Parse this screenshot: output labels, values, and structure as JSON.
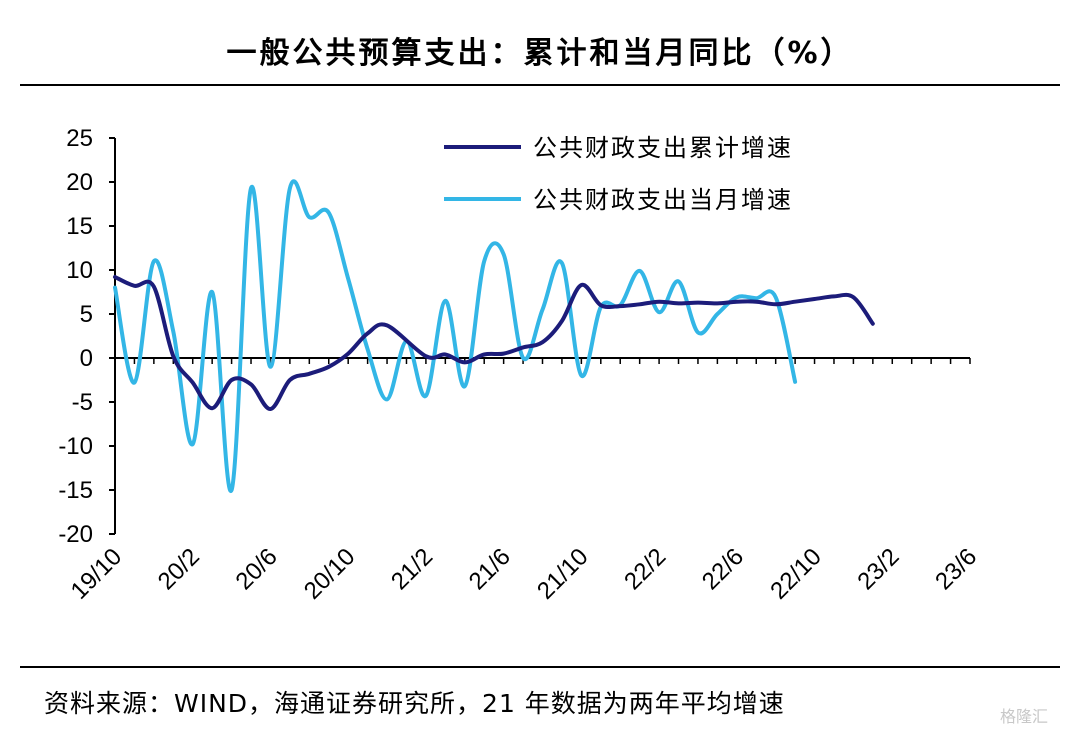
{
  "header": {
    "title": "一般公共预算支出：累计和当月同比（%）"
  },
  "footer": {
    "source": "资料来源：WIND，海通证券研究所，21 年数据为两年平均增速",
    "watermark": "格隆汇"
  },
  "colors": {
    "cumulative": "#1c1c7a",
    "monthly": "#33b6e6",
    "axis": "#000000"
  },
  "chart_data": {
    "type": "line",
    "title": "一般公共预算支出：累计和当月同比（%）",
    "ylim": [
      -20,
      25
    ],
    "yticks": [
      25,
      20,
      15,
      10,
      5,
      0,
      -5,
      -10,
      -15,
      -20
    ],
    "x_tick_labels": [
      "19/10",
      "20/2",
      "20/6",
      "20/10",
      "21/2",
      "21/6",
      "21/10",
      "22/2",
      "22/6",
      "22/10",
      "23/2",
      "23/6"
    ],
    "legend_position": "top-right",
    "x": [
      "19/10",
      "19/11",
      "19/12",
      "20/1",
      "20/2",
      "20/3",
      "20/4",
      "20/5",
      "20/6",
      "20/7",
      "20/8",
      "20/9",
      "20/10",
      "20/11",
      "20/12",
      "21/1",
      "21/2",
      "21/3",
      "21/4",
      "21/5",
      "21/6",
      "21/7",
      "21/8",
      "21/9",
      "21/10",
      "21/11",
      "21/12",
      "22/1",
      "22/2",
      "22/3",
      "22/4",
      "22/5",
      "22/6",
      "22/7",
      "22/8",
      "22/9",
      "22/10",
      "22/11",
      "22/12",
      "23/1",
      "23/2",
      "23/3",
      "23/4",
      "23/5",
      "23/6"
    ],
    "series": [
      {
        "name": "公共财政支出累计增速",
        "values": [
          9.2,
          8.2,
          8.1,
          0.2,
          -2.8,
          -5.7,
          -2.5,
          -3.0,
          -5.8,
          -2.5,
          -1.8,
          -1.0,
          0.5,
          2.8,
          3.7,
          null,
          0.2,
          0.4,
          -0.5,
          0.4,
          0.5,
          1.2,
          1.8,
          4.2,
          8.3,
          6.0,
          5.9,
          6.1,
          6.4,
          6.2,
          6.3,
          6.2,
          6.4,
          6.4,
          6.1,
          6.4,
          6.7,
          7.0,
          6.9,
          3.9,
          null,
          null,
          null,
          null,
          null
        ]
      },
      {
        "name": "公共财政支出当月增速",
        "values": [
          8.0,
          -2.8,
          11.0,
          3.0,
          -9.8,
          7.5,
          -15.0,
          19.3,
          -1.0,
          19.3,
          16.0,
          16.5,
          9.0,
          1.0,
          -4.7,
          1.9,
          -4.3,
          6.5,
          -3.2,
          11.0,
          11.8,
          0.0,
          5.5,
          10.8,
          -2.0,
          5.8,
          6.0,
          9.9,
          5.2,
          8.7,
          2.9,
          5.0,
          6.9,
          6.8,
          6.9,
          -2.7,
          null,
          null,
          null,
          null,
          null,
          null,
          null,
          null,
          null
        ]
      }
    ]
  }
}
